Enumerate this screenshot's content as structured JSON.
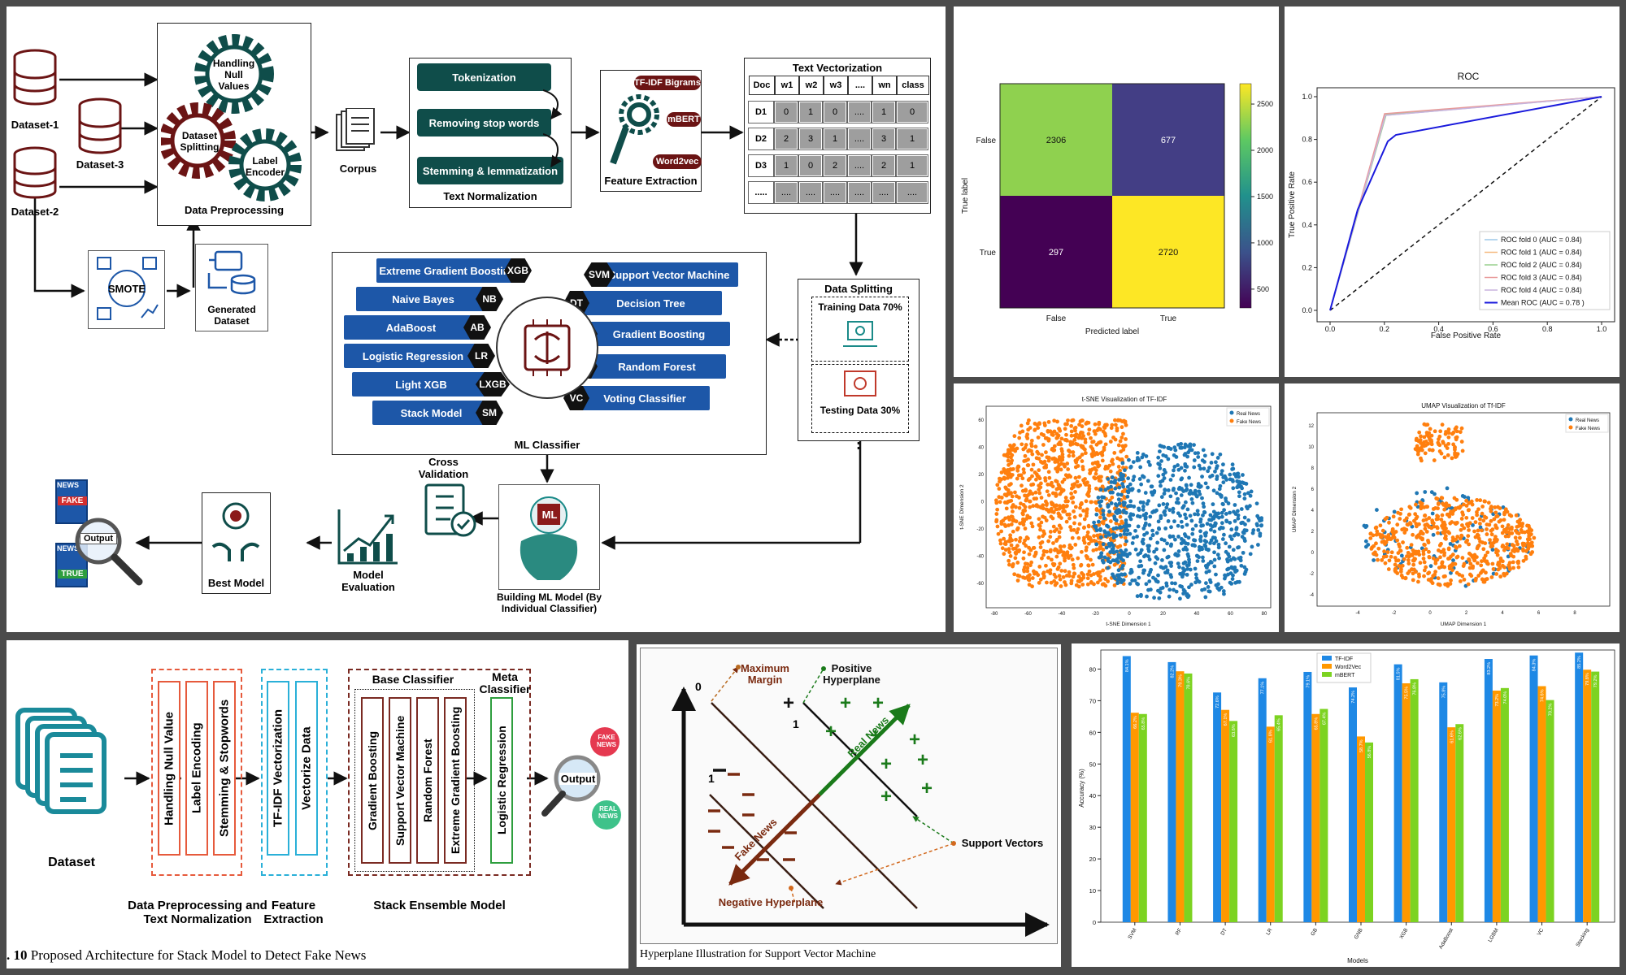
{
  "flow": {
    "datasets": [
      "Dataset-1",
      "Dataset-3",
      "Dataset-2"
    ],
    "preprocessing": {
      "gears": [
        "Handling Null Values",
        "Dataset Splitting",
        "Label Encoder"
      ],
      "title": "Data Preprocessing"
    },
    "smote": "SMOTE",
    "generated_dataset": "Generated Dataset",
    "corpus": "Corpus",
    "text_normalization": {
      "steps": [
        "Tokenization",
        "Removing stop words",
        "Stemming & lemmatization"
      ],
      "title": "Text Normalization"
    },
    "feature_extraction": {
      "items": [
        "TF-IDF Bigrams",
        "mBERT",
        "Word2vec"
      ],
      "title": "Feature Extraction"
    },
    "vectorization": {
      "title": "Text Vectorization",
      "header": [
        "Doc",
        "w1",
        "w2",
        "w3",
        "....",
        "wn",
        "class"
      ],
      "rows": [
        [
          "D1",
          "0",
          "1",
          "0",
          "....",
          "1",
          "0"
        ],
        [
          "D2",
          "2",
          "3",
          "1",
          "....",
          "3",
          "1"
        ],
        [
          "D3",
          "1",
          "0",
          "2",
          "....",
          "2",
          "1"
        ],
        [
          ".....",
          "....",
          "....",
          "....",
          "....",
          "....",
          "...."
        ]
      ]
    },
    "data_splitting": {
      "title": "Data Splitting",
      "training": "Training Data 70%",
      "testing": "Testing Data 30%"
    },
    "classifier": {
      "title": "ML Classifier",
      "left": [
        {
          "label": "Extreme Gradient Boosting",
          "abbr": "XGB"
        },
        {
          "label": "Naive Bayes",
          "abbr": "NB"
        },
        {
          "label": "AdaBoost",
          "abbr": "AB"
        },
        {
          "label": "Logistic Regression",
          "abbr": "LR"
        },
        {
          "label": "Light XGB",
          "abbr": "LXGB"
        },
        {
          "label": "Stack Model",
          "abbr": "SM"
        }
      ],
      "right": [
        {
          "label": "Support Vector Machine",
          "abbr": "SVM"
        },
        {
          "label": "Decision Tree",
          "abbr": "DT"
        },
        {
          "label": "Gradient Boosting",
          "abbr": "GB"
        },
        {
          "label": "Random Forest",
          "abbr": "RF"
        },
        {
          "label": "Voting Classifier",
          "abbr": "VC"
        }
      ]
    },
    "cross_validation": "Cross Validation",
    "building": "Building ML Model (By Individual Classifier)",
    "ml_badge": "ML",
    "model_evaluation": "Model Evaluation",
    "best_model": "Best Model",
    "output": "Output",
    "fake": "FAKE",
    "true": "TRUE",
    "news": "NEWS"
  },
  "confusion": {
    "ylabel": "True label",
    "xlabel": "Predicted label",
    "labels": [
      "False",
      "True"
    ],
    "values": [
      [
        2306,
        677
      ],
      [
        297,
        2720
      ]
    ],
    "colorbar_ticks": [
      2500,
      2000,
      1500,
      1000,
      500
    ]
  },
  "roc": {
    "title": "ROC",
    "xlabel": "False Positive Rate",
    "ylabel": "True Positive Rate",
    "ticks": [
      "0.0",
      "0.2",
      "0.4",
      "0.6",
      "0.8",
      "1.0"
    ],
    "legend": [
      {
        "label": "ROC fold 0 (AUC = 0.84)",
        "color": "#9ec9e8"
      },
      {
        "label": "ROC fold 1 (AUC = 0.84)",
        "color": "#f5b97f"
      },
      {
        "label": "ROC fold 2 (AUC = 0.84)",
        "color": "#98d08e"
      },
      {
        "label": "ROC fold 3 (AUC = 0.84)",
        "color": "#e89a9a"
      },
      {
        "label": "ROC fold 4 (AUC = 0.84)",
        "color": "#c9b3dd"
      },
      {
        "label": "Mean ROC (AUC = 0.78 )",
        "color": "#1a1adc"
      }
    ]
  },
  "tsne": {
    "title": "t-SNE Visualization of TF-IDF",
    "xlabel": "t-SNE Dimension 1",
    "ylabel": "t-SNE Dimension 2",
    "xticks": [
      "-80",
      "-60",
      "-40",
      "-20",
      "0",
      "20",
      "40",
      "60",
      "80"
    ],
    "yticks": [
      "60",
      "40",
      "20",
      "0",
      "-20",
      "-40",
      "-60"
    ],
    "legend": [
      "Real News",
      "Fake News"
    ]
  },
  "umap": {
    "title": "UMAP Visualization of Tf-IDF",
    "xlabel": "UMAP Dimension 1",
    "ylabel": "UMAP Dimension 2",
    "xticks": [
      "-4",
      "-2",
      "0",
      "2",
      "4",
      "6",
      "8"
    ],
    "yticks": [
      "12",
      "10",
      "8",
      "6",
      "4",
      "2",
      "0",
      "-2",
      "-4"
    ],
    "legend": [
      "Real News",
      "Fake News"
    ]
  },
  "architecture": {
    "dataset": "Dataset",
    "groups": [
      {
        "title": "Data Preprocessing and Text Normalization",
        "items": [
          "Handling Null Value",
          "Label Encoding",
          "Stemming & Stopwords"
        ]
      },
      {
        "title": "Feature Extraction",
        "items": [
          "TF-IDF Vectorization",
          "Vectorize Data"
        ]
      },
      {
        "title": "Stack Ensemble Model",
        "items": [
          "Gradient Boosting",
          "Support Vector Machine",
          "Random Forest",
          "Extreme Gradient Boosting",
          "Logistic Regression"
        ]
      }
    ],
    "base_classifier": "Base Classifier",
    "meta_classifier": "Meta Classifier",
    "output": "Output",
    "fake_news": "FAKE NEWS",
    "real_news": "REAL NEWS",
    "caption_num": ". 10",
    "caption": "Proposed Architecture for Stack Model to Detect Fake News"
  },
  "hyperplane": {
    "max_margin": "Maximum Margin",
    "positive": "Positive Hyperplane",
    "negative": "Negative Hyperplane",
    "support_vectors": "Support Vectors",
    "real_news": "Real News",
    "fake_news": "Fake News",
    "zero": "0",
    "one": "1",
    "caption": "Hyperplane Illustration for Support Vector Machine"
  },
  "chart_data": {
    "type": "bar",
    "title": "",
    "xlabel": "Models",
    "ylabel": "Accuracy (%)",
    "ylim": [
      0,
      85
    ],
    "yticks": [
      0,
      10,
      20,
      30,
      40,
      50,
      60,
      70,
      80
    ],
    "categories": [
      "SVM",
      "RF",
      "DT",
      "LR",
      "GB",
      "GNB",
      "XGB",
      "AdaBoost",
      "LGBM",
      "VC",
      "Stacking"
    ],
    "series": [
      {
        "name": "TF-IDF",
        "color": "#1e88e5",
        "values": [
          84.1,
          82.2,
          72.6,
          77.1,
          79.1,
          74.2,
          81.5,
          75.8,
          83.2,
          84.3,
          85.2
        ]
      },
      {
        "name": "Word2Vec",
        "color": "#ff9800",
        "values": [
          66.2,
          79.3,
          67.1,
          61.8,
          65.8,
          58.7,
          75.5,
          61.6,
          73.2,
          74.6,
          79.8
        ]
      },
      {
        "name": "mBERT",
        "color": "#7cd321",
        "values": [
          65.8,
          78.6,
          63.6,
          65.4,
          67.4,
          56.8,
          76.8,
          62.6,
          74.0,
          70.2,
          79.2
        ]
      }
    ],
    "labels": [
      [
        "84.1%",
        "66.2%",
        "65.8%"
      ],
      [
        "82.2%",
        "79.3%",
        "78.6%"
      ],
      [
        "72.6%",
        "67.1%",
        "63.6%"
      ],
      [
        "77.1%",
        "61.8%",
        "65.4%"
      ],
      [
        "79.1%",
        "65.8%",
        "67.4%"
      ],
      [
        "74.2%",
        "58.7%",
        "56.8%"
      ],
      [
        "81.5%",
        "75.5%",
        "76.8%"
      ],
      [
        "75.8%",
        "61.6%",
        "62.6%"
      ],
      [
        "83.2%",
        "73.2%",
        "74.0%"
      ],
      [
        "84.3%",
        "74.6%",
        "70.2%"
      ],
      [
        "85.2%",
        "79.8%",
        "79.2%"
      ]
    ]
  }
}
